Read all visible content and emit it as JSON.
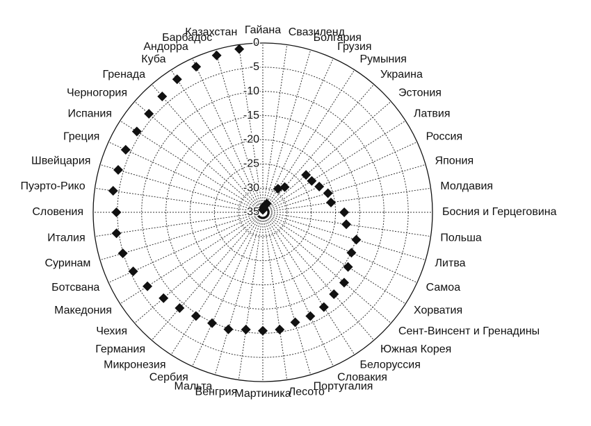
{
  "chart_data": {
    "type": "radar",
    "categories": [
      "Гайана",
      "Свазиленд",
      "Болгария",
      "Грузия",
      "Румыния",
      "Украина",
      "Эстония",
      "Латвия",
      "Россия",
      "Япония",
      "Молдавия",
      "Босния и Герцеговина",
      "Польша",
      "Литва",
      "Самоа",
      "Хорватия",
      "Сент-Винсент и Гренадины",
      "Южная Корея",
      "Белоруссия",
      "Словакия",
      "Португалия",
      "Лесото",
      "Мартиника",
      "Венгрия",
      "Мальта",
      "Сербия",
      "Микронезия",
      "Германия",
      "Чехия",
      "Македония",
      "Ботсвана",
      "Суринам",
      "Италия",
      "Словения",
      "Пуэрто-Рико",
      "Швейцария",
      "Греция",
      "Испания",
      "Черногория",
      "Гренада",
      "Куба",
      "Андорра",
      "Барбадос",
      "Казахстан"
    ],
    "values": [
      -34.5,
      -34,
      -33.5,
      -33,
      -29.2,
      -28.1,
      -23.2,
      -23,
      -22.2,
      -21,
      -20.8,
      -18.2,
      -17.6,
      -14.9,
      -14.9,
      -14.1,
      -12.8,
      -12.6,
      -11.7,
      -11.4,
      -11.3,
      -10.5,
      -10.5,
      -10.5,
      -9.8,
      -9.8,
      -9.5,
      -8.8,
      -7.9,
      -6.7,
      -5.6,
      -4.9,
      -4.5,
      -4.8,
      -3.8,
      -3.9,
      -3.9,
      -4.1,
      -3.9,
      -3.3,
      -2.3,
      -1.9,
      -1.2,
      -0.9
    ],
    "color": "#111111",
    "ylim": [
      -35,
      0
    ],
    "yticks": [
      0,
      -5,
      -10,
      -15,
      -20,
      -25,
      -30,
      -35
    ],
    "grid": true
  }
}
